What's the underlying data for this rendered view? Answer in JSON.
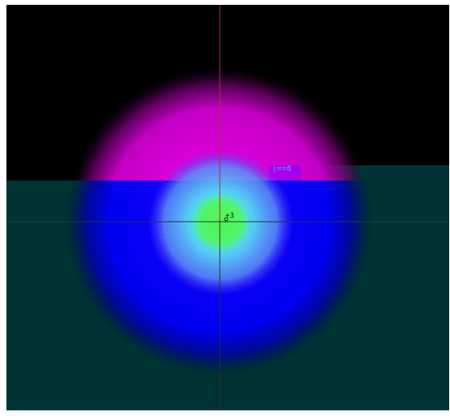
{
  "viewer": {
    "peak_readout": "|==8",
    "centroid_readout": "+3"
  },
  "colors": {
    "frame": "#ffffff",
    "background": "#000000",
    "lower_panel": "#003333",
    "beam_outer": "#0000ff",
    "beam_upper": "#d000d0",
    "beam_mid": "#00b5ff",
    "beam_core": "#00ff00",
    "crosshair_vertical": "#a83232",
    "crosshair_horizontal": "#1d3b3b"
  },
  "icons": {
    "crosshair": "crosshair-icon"
  }
}
